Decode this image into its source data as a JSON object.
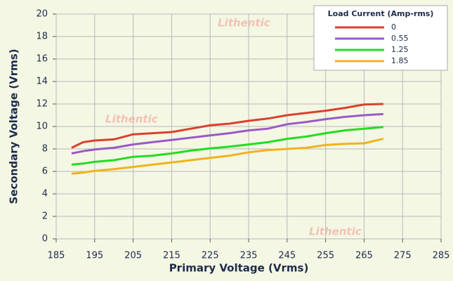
{
  "chart_data": {
    "type": "line",
    "x_label": "Primary Voltage (Vrms)",
    "y_label": "Secondary Voltage (Vrms)",
    "legend_title": "Load Current (Amp-rms)",
    "legend_position": "upper right",
    "watermark": "Lithentic",
    "grid": true,
    "x": [
      189,
      192,
      195,
      200,
      205,
      210,
      215,
      220,
      225,
      230,
      235,
      240,
      245,
      250,
      255,
      260,
      265,
      270
    ],
    "series": [
      {
        "name": "0",
        "color": "#d9412f",
        "values": [
          8.1,
          8.6,
          8.75,
          8.85,
          9.3,
          9.4,
          9.5,
          9.8,
          10.1,
          10.25,
          10.5,
          10.7,
          11.0,
          11.2,
          11.4,
          11.65,
          11.95,
          12.0
        ]
      },
      {
        "name": "0.55",
        "color": "#9b59c6",
        "values": [
          7.6,
          7.8,
          7.95,
          8.1,
          8.4,
          8.6,
          8.8,
          9.0,
          9.2,
          9.4,
          9.65,
          9.8,
          10.2,
          10.4,
          10.65,
          10.85,
          11.0,
          11.1
        ]
      },
      {
        "name": "1.25",
        "color": "#22dd22",
        "values": [
          6.6,
          6.7,
          6.85,
          7.0,
          7.3,
          7.4,
          7.6,
          7.85,
          8.05,
          8.2,
          8.4,
          8.6,
          8.9,
          9.1,
          9.4,
          9.65,
          9.8,
          9.95
        ]
      },
      {
        "name": "1.85",
        "color": "#f0b31c",
        "values": [
          5.8,
          5.9,
          6.05,
          6.2,
          6.4,
          6.6,
          6.8,
          7.0,
          7.2,
          7.4,
          7.7,
          7.9,
          8.0,
          8.1,
          8.35,
          8.45,
          8.5,
          8.9
        ]
      }
    ],
    "xlim": [
      185,
      285
    ],
    "xticks": [
      185,
      195,
      205,
      215,
      225,
      235,
      245,
      255,
      265,
      275,
      285
    ],
    "ylim": [
      0,
      20
    ],
    "yticks": [
      0,
      2,
      4,
      6,
      8,
      10,
      12,
      14,
      16,
      18,
      20
    ]
  }
}
